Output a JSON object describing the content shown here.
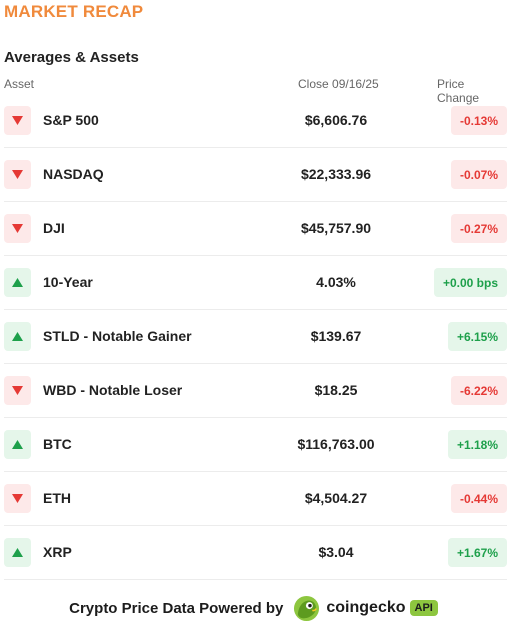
{
  "header": {
    "title": "MARKET RECAP",
    "subtitle": "Averages & Assets"
  },
  "table": {
    "columns": [
      "Asset",
      "Close 09/16/25",
      "Price Change"
    ],
    "rows": [
      {
        "asset": "S&P 500",
        "close": "$6,606.76",
        "change": "-0.13%",
        "direction": "down"
      },
      {
        "asset": "NASDAQ",
        "close": "$22,333.96",
        "change": "-0.07%",
        "direction": "down"
      },
      {
        "asset": "DJI",
        "close": "$45,757.90",
        "change": "-0.27%",
        "direction": "down"
      },
      {
        "asset": "10-Year",
        "close": "4.03%",
        "change": "+0.00 bps",
        "direction": "up"
      },
      {
        "asset": "STLD - Notable Gainer",
        "close": "$139.67",
        "change": "+6.15%",
        "direction": "up"
      },
      {
        "asset": "WBD - Notable Loser",
        "close": "$18.25",
        "change": "-6.22%",
        "direction": "down"
      },
      {
        "asset": "BTC",
        "close": "$116,763.00",
        "change": "+1.18%",
        "direction": "up"
      },
      {
        "asset": "ETH",
        "close": "$4,504.27",
        "change": "-0.44%",
        "direction": "down"
      },
      {
        "asset": "XRP",
        "close": "$3.04",
        "change": "+1.67%",
        "direction": "up"
      }
    ]
  },
  "footer": {
    "powered_text": "Crypto Price Data Powered by",
    "brand_name": "coingecko",
    "api_label": "API"
  },
  "colors": {
    "title": "#f08a3c",
    "down_text": "#e53935",
    "down_bg": "#fde9e9",
    "up_text": "#1ea04b",
    "up_bg": "#e5f6ea",
    "api_badge": "#8dc63f"
  },
  "icons": {
    "down": "triangle-down-icon",
    "up": "triangle-up-icon",
    "brand_logo": "coingecko-logo-icon"
  }
}
